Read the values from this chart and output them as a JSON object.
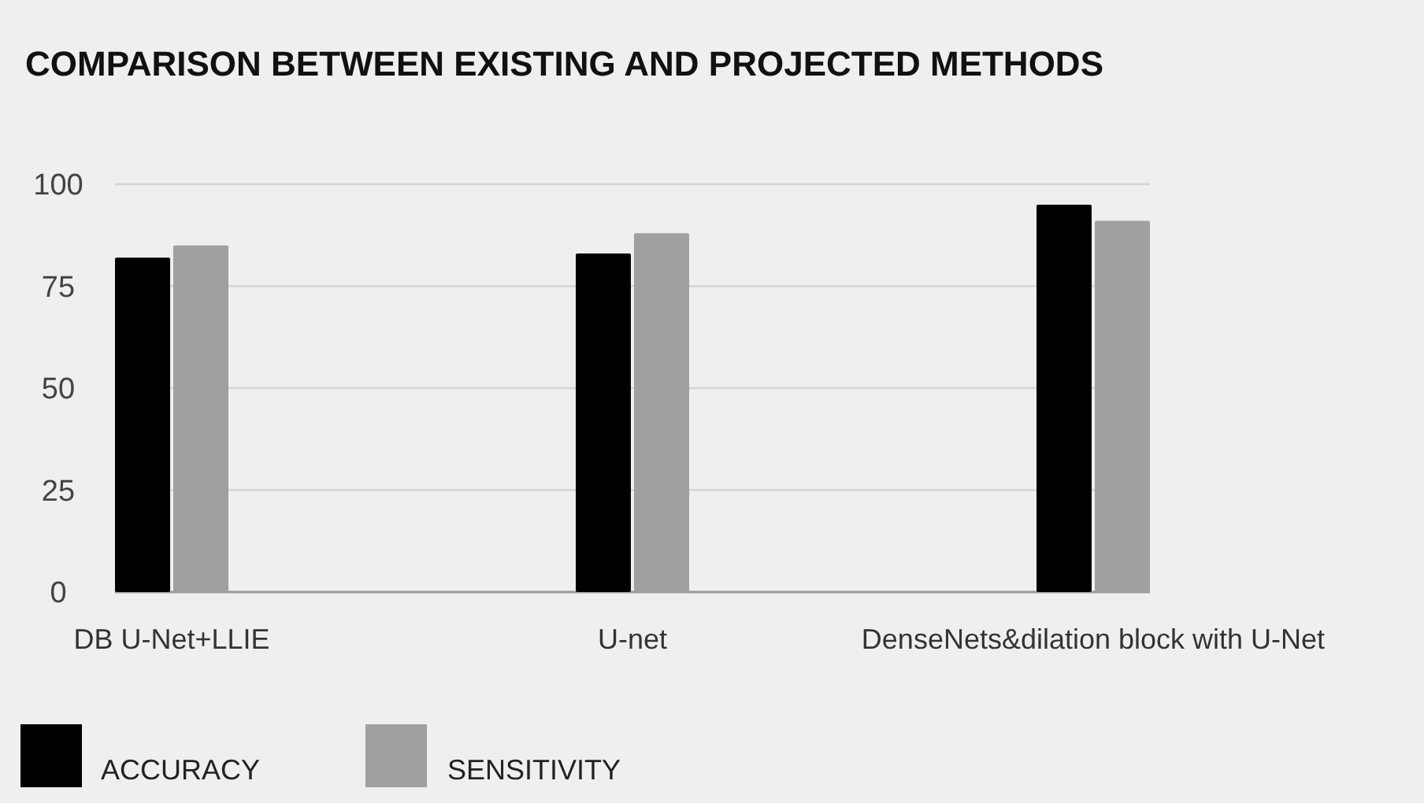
{
  "chart_data": {
    "type": "bar",
    "title": "COMPARISON BETWEEN EXISTING AND PROJECTED METHODS",
    "categories": [
      "DB U-Net+LLIE",
      "U-net",
      "DenseNets&dilation block with U-Net"
    ],
    "series": [
      {
        "name": "ACCURACY",
        "color": "#000000",
        "values": [
          82,
          83,
          95
        ]
      },
      {
        "name": "SENSITIVITY",
        "color": "#a0a0a0",
        "values": [
          85,
          88,
          91
        ]
      }
    ],
    "ylim": [
      0,
      100
    ],
    "yticks": [
      0,
      25,
      50,
      75,
      100
    ],
    "grid": "y",
    "legend": "bottom left"
  }
}
